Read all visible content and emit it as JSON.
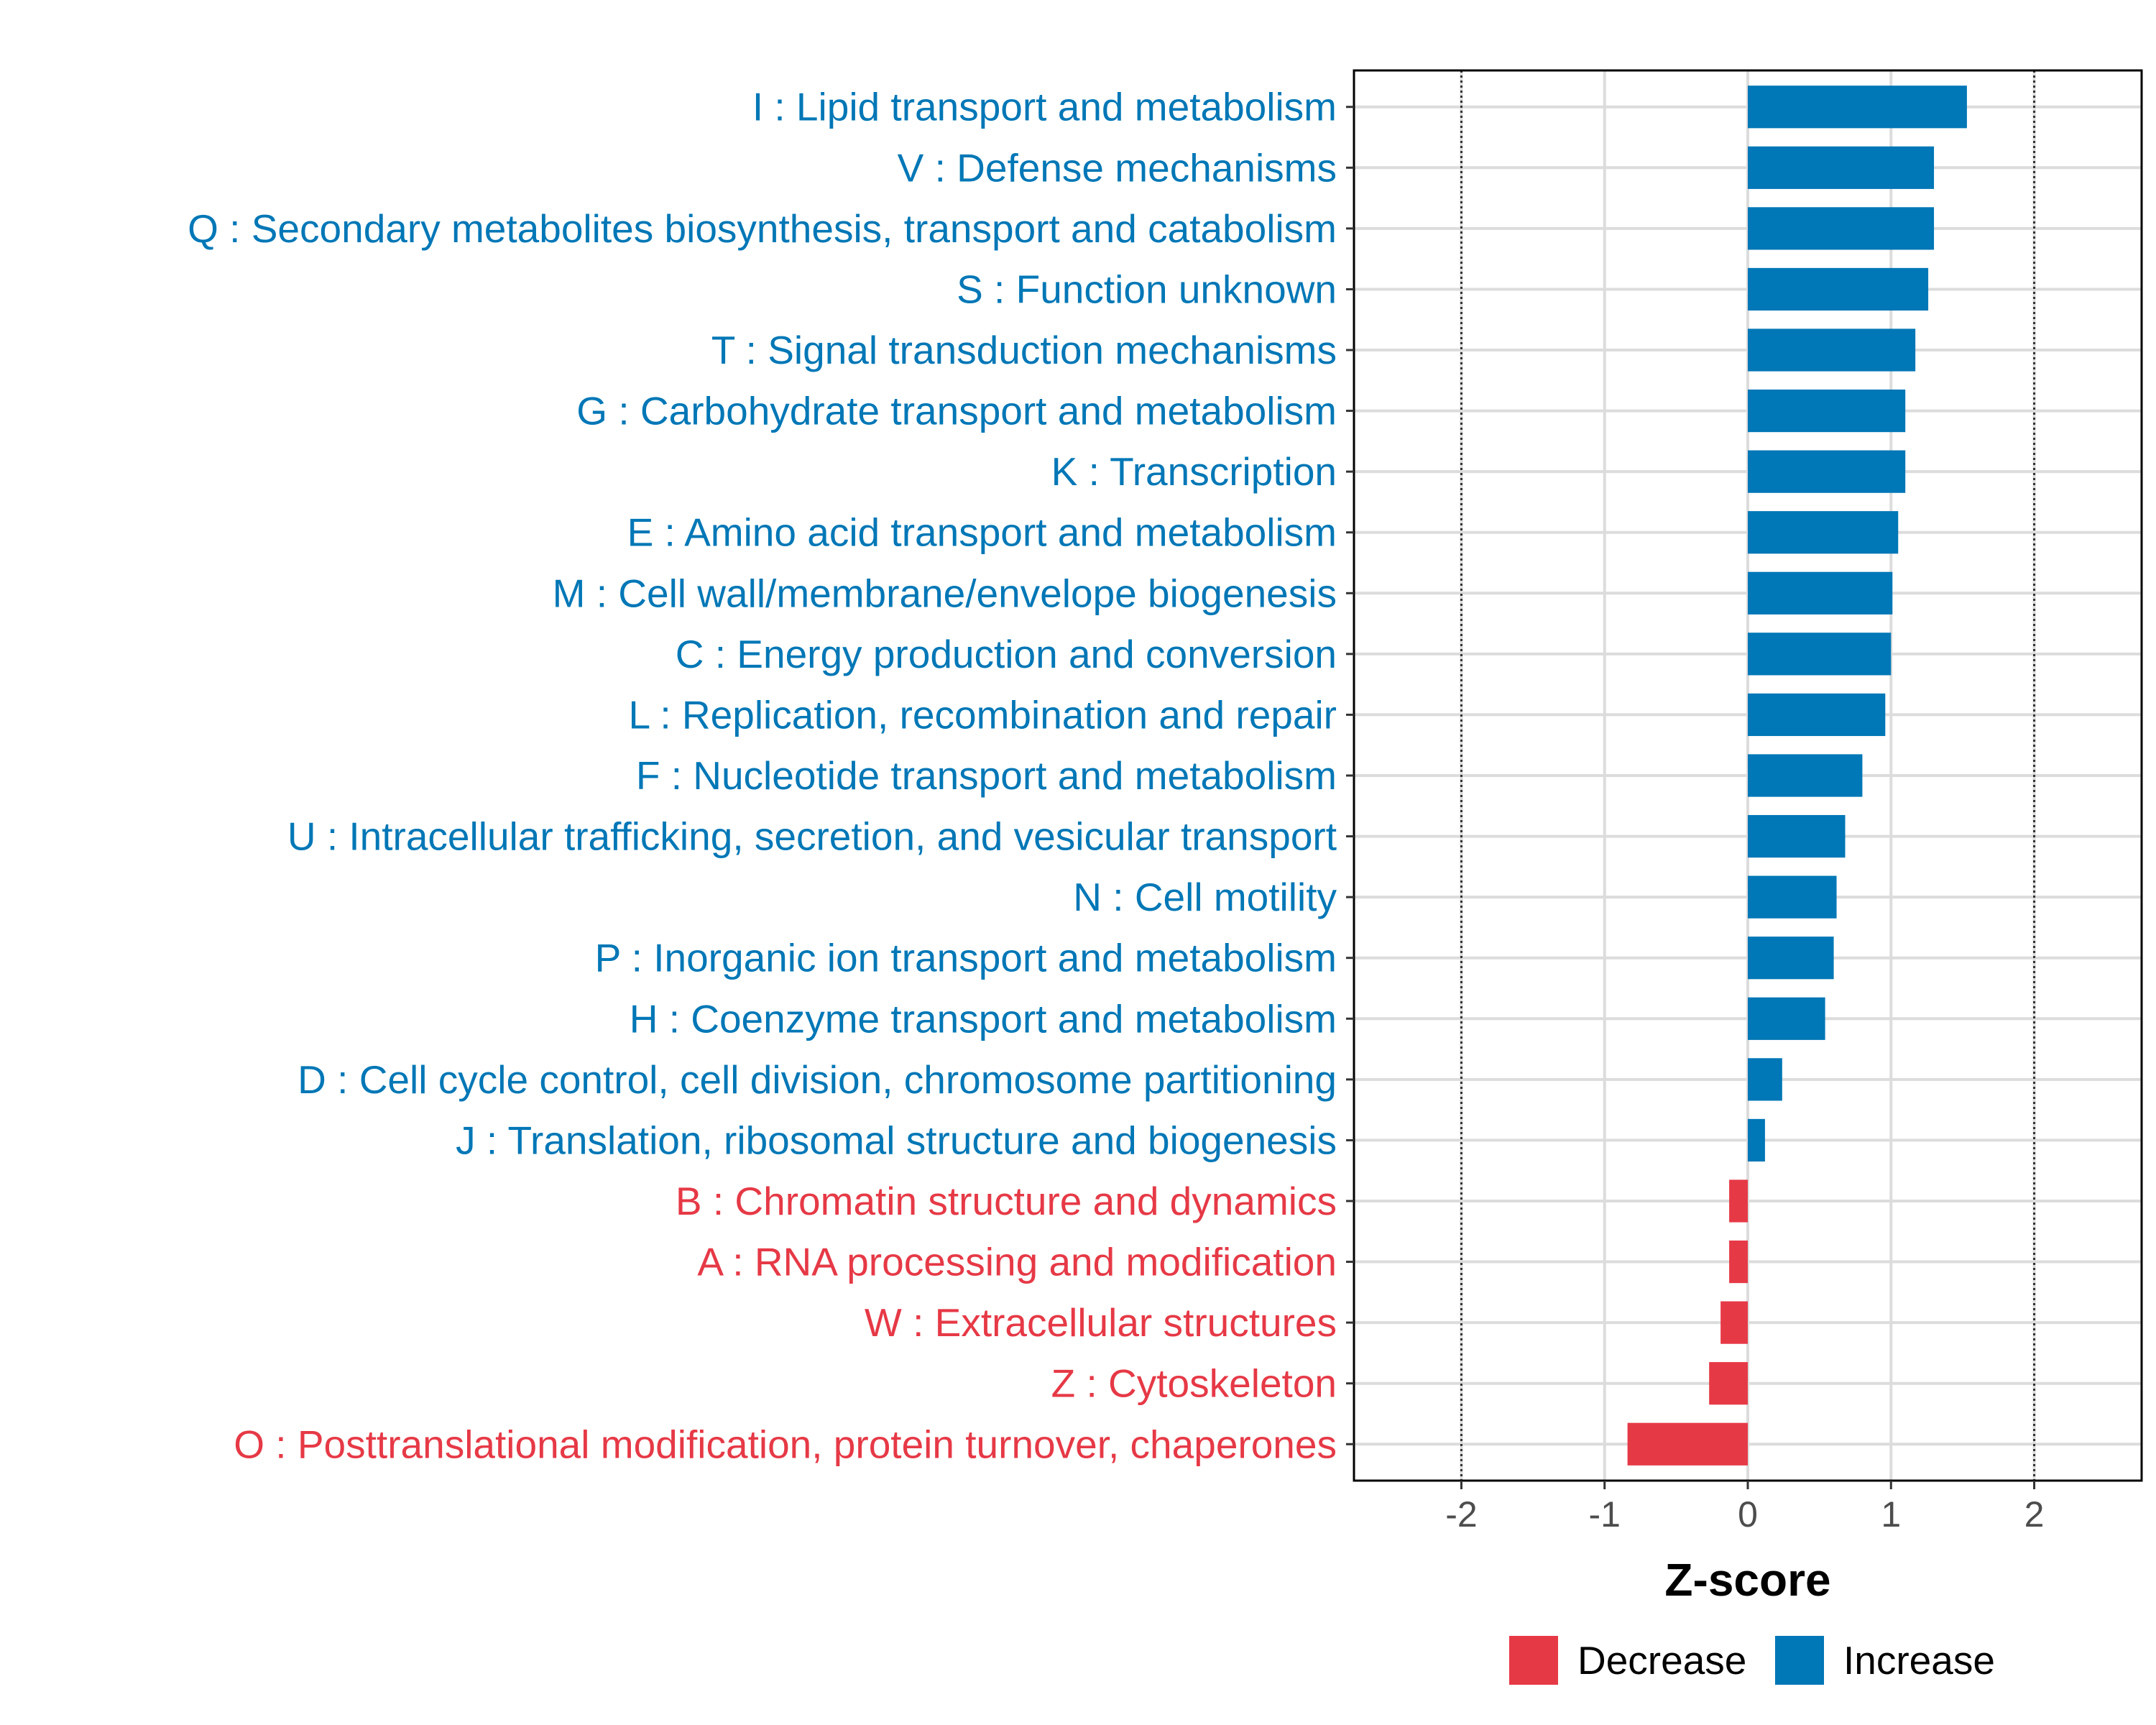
{
  "chart_data": {
    "type": "bar",
    "orientation": "horizontal",
    "xlabel": "Z-score",
    "ylabel": "",
    "xlim": [
      -2.75,
      2.75
    ],
    "xticks": [
      -2,
      -1,
      0,
      1,
      2
    ],
    "xtick_labels": [
      "-2",
      "-1",
      "0",
      "1",
      "2"
    ],
    "reference_lines": [
      -2,
      2
    ],
    "grid": true,
    "categories": [
      "I : Lipid transport and metabolism",
      "V : Defense mechanisms",
      "Q : Secondary metabolites biosynthesis, transport and catabolism",
      "S : Function unknown",
      "T : Signal transduction mechanisms",
      "G : Carbohydrate transport and metabolism",
      "K : Transcription",
      "E : Amino acid transport and metabolism",
      "M : Cell wall/membrane/envelope biogenesis",
      "C : Energy production and conversion",
      "L : Replication, recombination and repair",
      "F : Nucleotide transport and metabolism",
      "U : Intracellular trafficking, secretion, and vesicular transport",
      "N : Cell motility",
      "P : Inorganic ion transport and metabolism",
      "H : Coenzyme transport and metabolism",
      "D : Cell cycle control, cell division, chromosome partitioning",
      "J : Translation, ribosomal structure and biogenesis",
      "B : Chromatin structure and dynamics",
      "A : RNA processing and modification",
      "W : Extracellular structures",
      "Z : Cytoskeleton",
      "O : Posttranslational modification, protein turnover, chaperones"
    ],
    "values": [
      1.53,
      1.3,
      1.3,
      1.26,
      1.17,
      1.1,
      1.1,
      1.05,
      1.01,
      1.0,
      0.96,
      0.8,
      0.68,
      0.62,
      0.6,
      0.54,
      0.24,
      0.12,
      -0.13,
      -0.13,
      -0.19,
      -0.27,
      -0.84
    ],
    "legend": {
      "placement": "bottom",
      "entries": [
        {
          "label": "Decrease",
          "color": "#e63946"
        },
        {
          "label": "Increase",
          "color": "#0077b6"
        }
      ]
    },
    "colors": {
      "increase": "#0077b6",
      "decrease": "#e63946",
      "grid": "#dcdcdc",
      "reference": "#333333",
      "frame": "#000000"
    }
  }
}
